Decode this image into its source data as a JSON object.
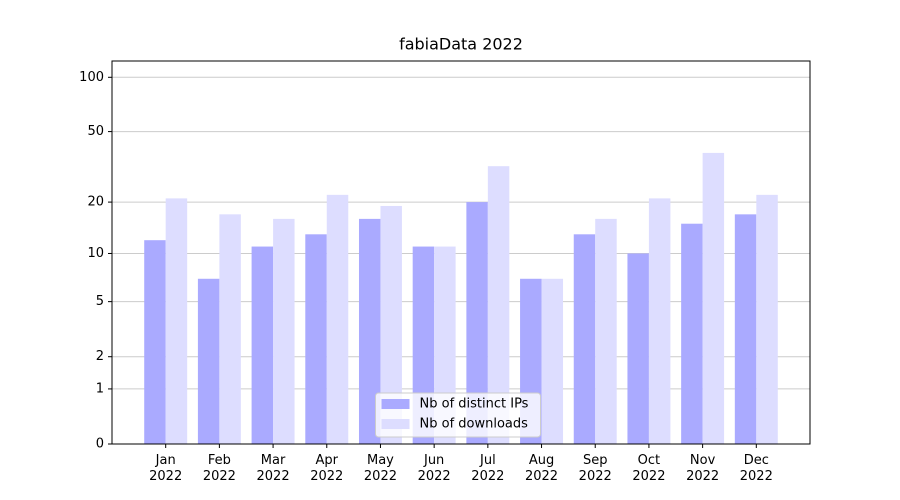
{
  "chart_data": {
    "type": "bar",
    "title": "fabiaData 2022",
    "categories": [
      "Jan 2022",
      "Feb 2022",
      "Mar 2022",
      "Apr 2022",
      "May 2022",
      "Jun 2022",
      "Jul 2022",
      "Aug 2022",
      "Sep 2022",
      "Oct 2022",
      "Nov 2022",
      "Dec 2022"
    ],
    "series": [
      {
        "name": "Nb of distinct IPs",
        "color": "#aaaaff",
        "values": [
          12,
          7,
          11,
          13,
          16,
          11,
          20,
          7,
          13,
          10,
          15,
          17
        ]
      },
      {
        "name": "Nb of downloads",
        "color": "#ddddff",
        "values": [
          21,
          17,
          16,
          22,
          19,
          11,
          32,
          7,
          16,
          21,
          38,
          22
        ]
      }
    ],
    "yscale": "symlog",
    "ylim": [
      0,
      123
    ],
    "yticks": [
      0,
      1,
      2,
      5,
      10,
      20,
      50,
      100
    ],
    "grid": true,
    "legend": "lower center"
  }
}
